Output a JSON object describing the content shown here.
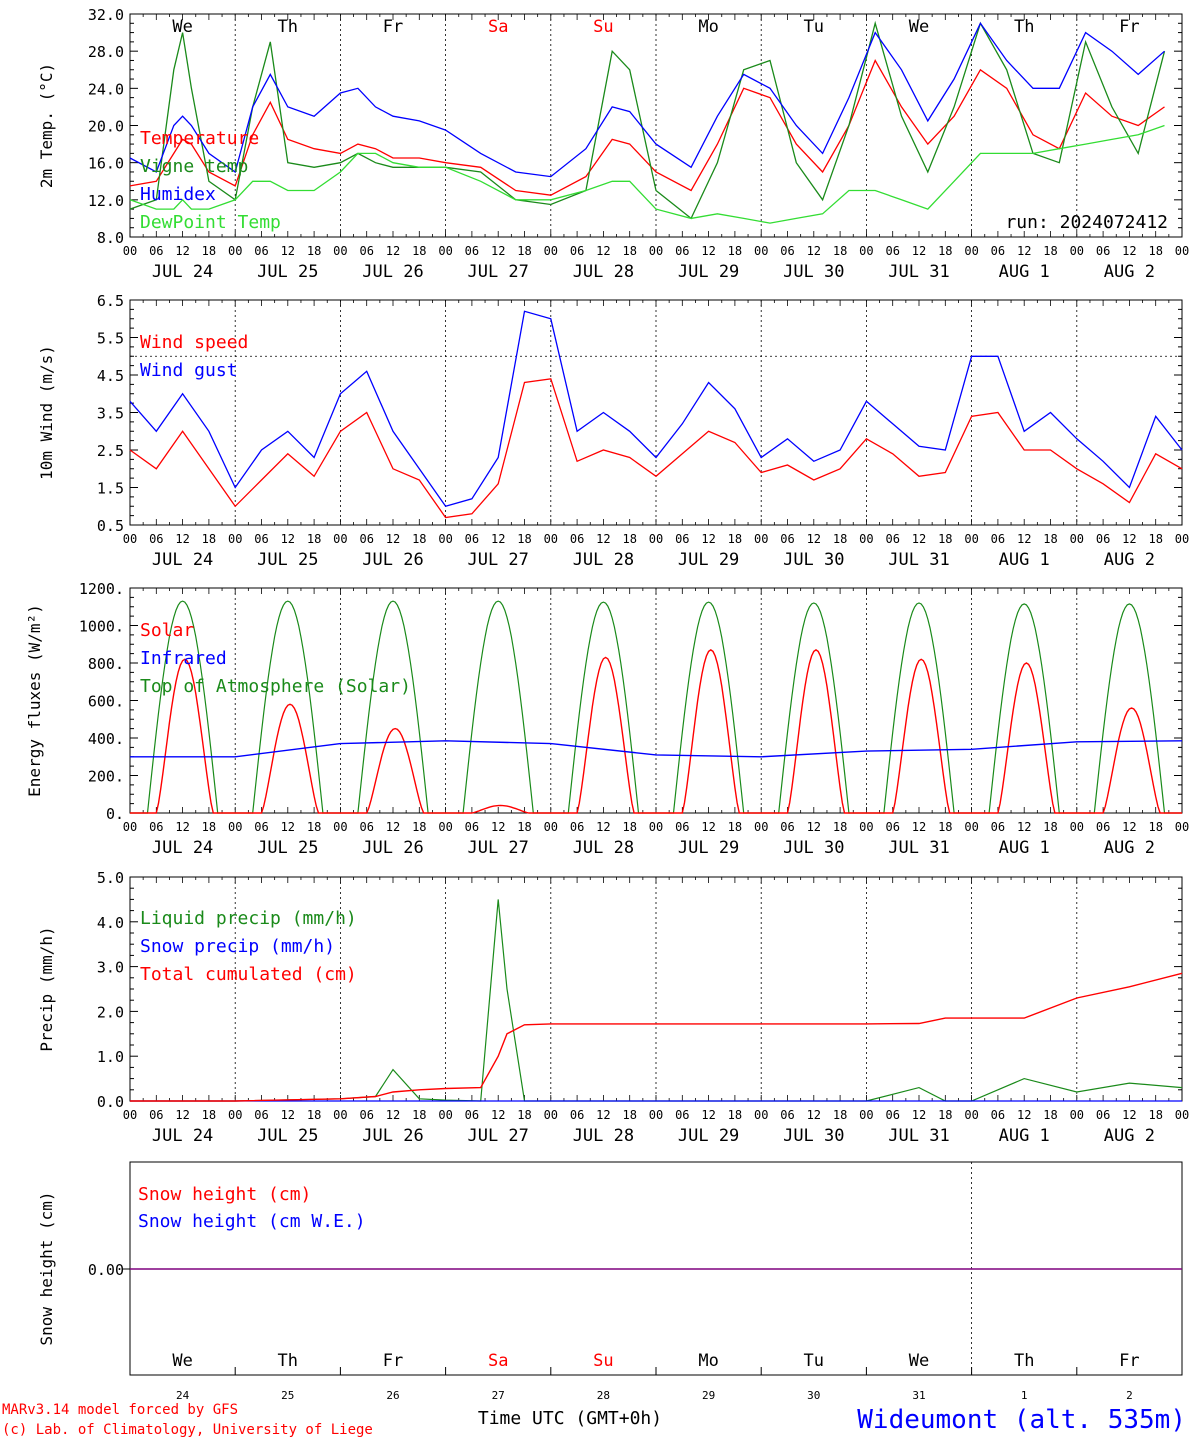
{
  "colors": {
    "red": "#ff0000",
    "green": "#1a8a1a",
    "blue": "#0000ff",
    "lightgreen": "#33dd33",
    "purple": "#7f007f",
    "grid": "#555555"
  },
  "days_top": [
    {
      "label": "We",
      "color": "#000000"
    },
    {
      "label": "Th",
      "color": "#000000"
    },
    {
      "label": "Fr",
      "color": "#000000"
    },
    {
      "label": "Sa",
      "color": "#ff0000"
    },
    {
      "label": "Su",
      "color": "#ff0000"
    },
    {
      "label": "Mo",
      "color": "#000000"
    },
    {
      "label": "Tu",
      "color": "#000000"
    },
    {
      "label": "We",
      "color": "#000000"
    },
    {
      "label": "Th",
      "color": "#000000"
    },
    {
      "label": "Fr",
      "color": "#000000"
    }
  ],
  "date_labels": [
    "JUL 24",
    "JUL 25",
    "JUL 26",
    "JUL 27",
    "JUL 28",
    "JUL 29",
    "JUL 30",
    "JUL 31",
    "AUG  1",
    "AUG  2"
  ],
  "hour_labels": [
    "00",
    "06",
    "12",
    "18"
  ],
  "hour_label_end": "00",
  "day_numbers": [
    "24",
    "25",
    "26",
    "27",
    "28",
    "29",
    "30",
    "31",
    "1",
    "2"
  ],
  "footer": {
    "model_line": "MARv3.14 model forced by GFS",
    "lab_line": "(c) Lab. of Climatology, University of Liege",
    "time_axis_label": "Time UTC (GMT+0h)",
    "station": "Wideumont (alt. 535m)"
  },
  "chart_data": [
    {
      "type": "line",
      "ylabel": "2m Temp. (°C)",
      "ylim": [
        8,
        32
      ],
      "yticks": [
        "8.0",
        "12.0",
        "16.0",
        "20.0",
        "24.0",
        "28.0",
        "32.0"
      ],
      "run_label": "run: 2024072412",
      "x_hours": [
        0,
        6,
        10,
        12,
        14,
        18,
        24,
        28,
        32,
        36,
        42,
        48,
        52,
        56,
        60,
        66,
        72,
        80,
        88,
        96,
        104,
        110,
        114,
        120,
        128,
        134,
        140,
        146,
        152,
        158,
        164,
        170,
        176,
        182,
        188,
        194,
        200,
        206,
        212,
        218,
        224,
        230,
        236
      ],
      "series": [
        {
          "name": "Temperature",
          "color": "#ff0000",
          "values": [
            13.5,
            14,
            17,
            18.5,
            18,
            15,
            13.5,
            19,
            22.5,
            18.5,
            17.5,
            17,
            18,
            17.5,
            16.5,
            16.5,
            16,
            15.5,
            13,
            12.5,
            14.5,
            18.5,
            18,
            15,
            13,
            18,
            24,
            23,
            18,
            15,
            20,
            27,
            22,
            18,
            21,
            26,
            24,
            19,
            17.5,
            23.5,
            21,
            20,
            22
          ]
        },
        {
          "name": "Vigne temp",
          "color": "#1a8a1a",
          "values": [
            11,
            12,
            26,
            30,
            24,
            14,
            12,
            22,
            29,
            16,
            15.5,
            16,
            17,
            16,
            15.5,
            15.5,
            15.5,
            15,
            12,
            11.5,
            13,
            28,
            26,
            13,
            10,
            16,
            26,
            27,
            16,
            12,
            20,
            31,
            21,
            15,
            22,
            31,
            26,
            17,
            16,
            29,
            22,
            17,
            28
          ]
        },
        {
          "name": "Humidex",
          "color": "#0000ff",
          "values": [
            16.5,
            15,
            20,
            21,
            20,
            17,
            15,
            22,
            25.5,
            22,
            21,
            23.5,
            24,
            22,
            21,
            20.5,
            19.5,
            17,
            15,
            14.5,
            17.5,
            22,
            21.5,
            18,
            15.5,
            21,
            25.5,
            24,
            20,
            17,
            23,
            30,
            26,
            20.5,
            25,
            31,
            27,
            24,
            24,
            30,
            28,
            25.5,
            28
          ]
        },
        {
          "name": "DewPoint Temp",
          "color": "#33dd33",
          "values": [
            12,
            11,
            11,
            12,
            11,
            11,
            12,
            14,
            14,
            13,
            13,
            15,
            17,
            17,
            16,
            15.5,
            15.5,
            14,
            12,
            12,
            13,
            14,
            14,
            11,
            10,
            10.5,
            10,
            9.5,
            10,
            10.5,
            13,
            13,
            12,
            11,
            14,
            17,
            17,
            17,
            17.5,
            18,
            18.5,
            19,
            20
          ]
        }
      ]
    },
    {
      "type": "line",
      "ylabel": "10m Wind (m/s)",
      "ylim": [
        0.5,
        6.5
      ],
      "yticks": [
        "0.5",
        "1.5",
        "2.5",
        "3.5",
        "4.5",
        "5.5",
        "6.5"
      ],
      "reference_line": 5.0,
      "x_hours": [
        0,
        6,
        12,
        18,
        24,
        30,
        36,
        42,
        48,
        54,
        60,
        66,
        72,
        78,
        84,
        90,
        96,
        102,
        108,
        114,
        120,
        126,
        132,
        138,
        144,
        150,
        156,
        162,
        168,
        174,
        180,
        186,
        192,
        198,
        204,
        210,
        216,
        222,
        228,
        234,
        240
      ],
      "series": [
        {
          "name": "Wind speed",
          "color": "#ff0000",
          "values": [
            2.5,
            2,
            3,
            2,
            1,
            1.7,
            2.4,
            1.8,
            3,
            3.5,
            2,
            1.7,
            0.7,
            0.8,
            1.6,
            4.3,
            4.4,
            2.2,
            2.5,
            2.3,
            1.8,
            2.4,
            3,
            2.7,
            1.9,
            2.1,
            1.7,
            2,
            2.8,
            2.4,
            1.8,
            1.9,
            3.4,
            3.5,
            2.5,
            2.5,
            2,
            1.6,
            1.1,
            2.4,
            2.0
          ]
        },
        {
          "name": "Wind gust",
          "color": "#0000ff",
          "values": [
            3.8,
            3,
            4,
            3,
            1.5,
            2.5,
            3,
            2.3,
            4,
            4.6,
            3,
            2,
            1,
            1.2,
            2.3,
            6.2,
            6,
            3,
            3.5,
            3,
            2.3,
            3.2,
            4.3,
            3.6,
            2.3,
            2.8,
            2.2,
            2.5,
            3.8,
            3.2,
            2.6,
            2.5,
            5,
            5,
            3,
            3.5,
            2.8,
            2.2,
            1.5,
            3.4,
            2.5
          ]
        }
      ]
    },
    {
      "type": "line",
      "ylabel": "Energy fluxes (W/m²)",
      "ylim": [
        0,
        1200
      ],
      "yticks": [
        "0.",
        "200.",
        "400.",
        "600.",
        "800.",
        "1000.",
        "1200."
      ],
      "series": [
        {
          "name": "Solar",
          "color": "#ff0000",
          "daily_peaks": [
            820,
            580,
            450,
            40,
            830,
            870,
            870,
            820,
            800,
            560
          ]
        },
        {
          "name": "Infrared",
          "color": "#0000ff",
          "x_hours": [
            0,
            24,
            48,
            72,
            96,
            120,
            144,
            168,
            192,
            216,
            240
          ],
          "values": [
            300,
            300,
            370,
            385,
            370,
            310,
            300,
            330,
            340,
            380,
            385
          ]
        },
        {
          "name": "Top of Atmosphere (Solar)",
          "color": "#1a8a1a",
          "daily_peaks": [
            1130,
            1130,
            1130,
            1130,
            1125,
            1125,
            1120,
            1120,
            1115,
            1115
          ]
        }
      ]
    },
    {
      "type": "line",
      "ylabel": "Precip (mm/h)",
      "ylim": [
        0,
        5
      ],
      "yticks": [
        "0.0",
        "1.0",
        "2.0",
        "3.0",
        "4.0",
        "5.0"
      ],
      "x_hours": [
        0,
        24,
        48,
        56,
        60,
        66,
        72,
        80,
        84,
        86,
        90,
        96,
        120,
        144,
        168,
        180,
        186,
        192,
        204,
        216,
        228,
        240
      ],
      "series": [
        {
          "name": "Liquid precip (mm/h)",
          "color": "#1a8a1a",
          "values": [
            0,
            0,
            0.05,
            0.1,
            0.7,
            0.05,
            0.02,
            0,
            4.5,
            2.5,
            0,
            0,
            0,
            0,
            0,
            0.3,
            0,
            0,
            0.5,
            0.2,
            0.4,
            0.3
          ]
        },
        {
          "name": "Snow precip (mm/h)",
          "color": "#0000ff",
          "values": [
            0
          ]
        },
        {
          "name": "Total cumulated (cm)",
          "color": "#ff0000",
          "values": [
            0,
            0,
            0.05,
            0.1,
            0.2,
            0.25,
            0.28,
            0.3,
            1.0,
            1.5,
            1.7,
            1.72,
            1.72,
            1.72,
            1.72,
            1.73,
            1.85,
            1.85,
            1.85,
            2.3,
            2.55,
            2.85
          ]
        }
      ]
    },
    {
      "type": "line",
      "ylabel": "Snow height (cm)",
      "yticks": [
        "0.00"
      ],
      "series": [
        {
          "name": "Snow height (cm)",
          "color": "#ff0000",
          "values": [
            0
          ]
        },
        {
          "name": "Snow height (cm W.E.)",
          "color": "#0000ff",
          "values": [
            0
          ]
        }
      ]
    }
  ]
}
